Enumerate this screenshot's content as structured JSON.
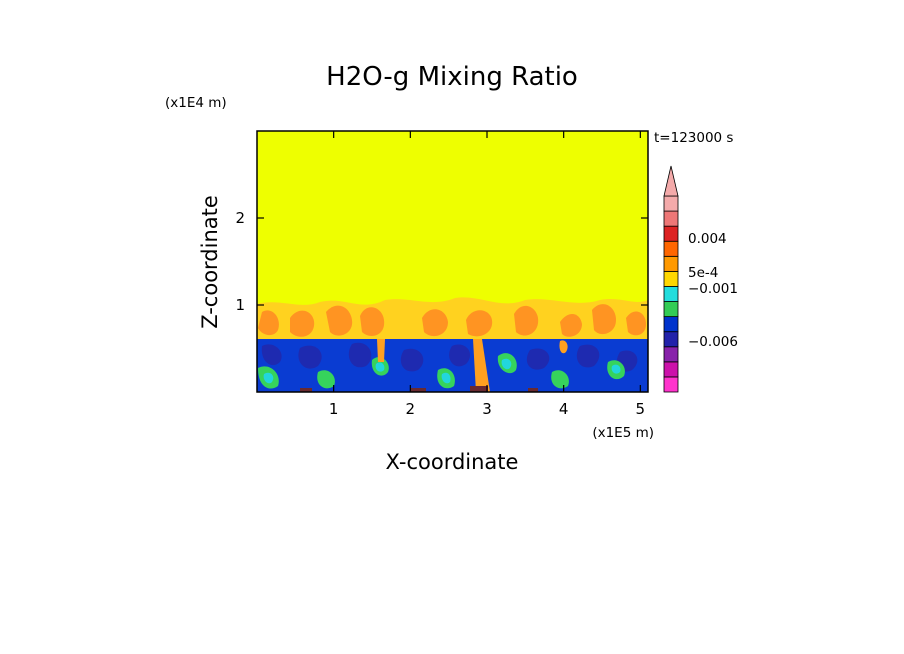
{
  "chart_data": {
    "type": "heatmap",
    "title": "H2O-g Mixing Ratio",
    "xlabel": "X-coordinate",
    "ylabel": "Z-coordinate",
    "x_scale_label": "(x1E5 m)",
    "y_scale_label": "(x1E4 m)",
    "time_label": "t=123000 s",
    "xlim": [
      0,
      5.1
    ],
    "ylim": [
      0,
      3.0
    ],
    "x_ticks": [
      "1",
      "2",
      "3",
      "4",
      "5"
    ],
    "x_tick_values": [
      1,
      2,
      3,
      4,
      5
    ],
    "y_ticks": [
      "1",
      "2"
    ],
    "y_tick_values": [
      1,
      2
    ],
    "grid": false,
    "colorbar": {
      "labels": [
        {
          "text": "0.004",
          "value": 0.004
        },
        {
          "text": "5e-4",
          "value": 0.0005
        },
        {
          "text": "−0.001",
          "value": -0.001
        },
        {
          "text": "−0.006",
          "value": -0.006
        }
      ],
      "colors_bottom_to_top": [
        "#ff33cc",
        "#cc11aa",
        "#8822aa",
        "#2222aa",
        "#0033cc",
        "#33cc55",
        "#22dddd",
        "#ffd700",
        "#ff9900",
        "#ff6600",
        "#dd2222",
        "#ee7777",
        "#f4aaaa"
      ],
      "extend_top": true
    },
    "regions": [
      {
        "name": "upper layer",
        "z_range": [
          1.0,
          3.0
        ],
        "color": "#eeff00"
      },
      {
        "name": "transition layer",
        "z_range": [
          0.6,
          1.0
        ],
        "color": "#ffaa33"
      },
      {
        "name": "lower layer",
        "z_range": [
          0.0,
          0.6
        ],
        "color": "#0033cc"
      }
    ]
  }
}
